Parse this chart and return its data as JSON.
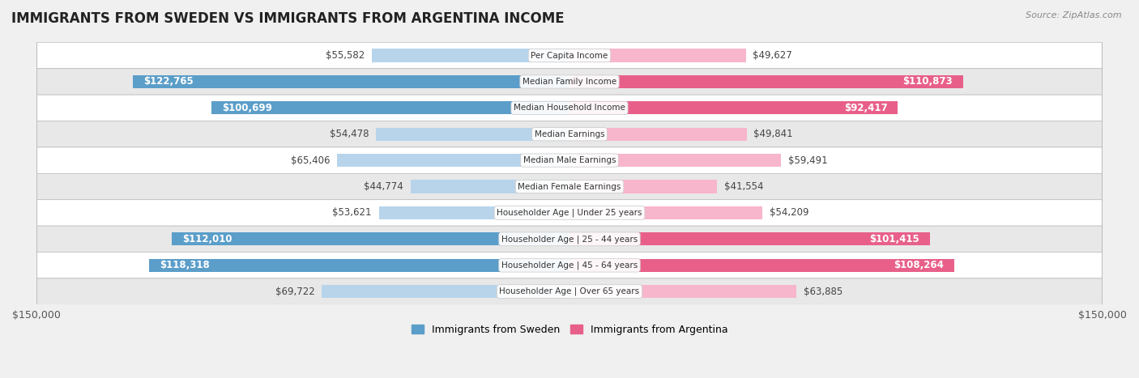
{
  "title": "IMMIGRANTS FROM SWEDEN VS IMMIGRANTS FROM ARGENTINA INCOME",
  "source": "Source: ZipAtlas.com",
  "categories": [
    "Per Capita Income",
    "Median Family Income",
    "Median Household Income",
    "Median Earnings",
    "Median Male Earnings",
    "Median Female Earnings",
    "Householder Age | Under 25 years",
    "Householder Age | 25 - 44 years",
    "Householder Age | 45 - 64 years",
    "Householder Age | Over 65 years"
  ],
  "sweden_values": [
    55582,
    122765,
    100699,
    54478,
    65406,
    44774,
    53621,
    112010,
    118318,
    69722
  ],
  "argentina_values": [
    49627,
    110873,
    92417,
    49841,
    59491,
    41554,
    54209,
    101415,
    108264,
    63885
  ],
  "sweden_labels": [
    "$55,582",
    "$122,765",
    "$100,699",
    "$54,478",
    "$65,406",
    "$44,774",
    "$53,621",
    "$112,010",
    "$118,318",
    "$69,722"
  ],
  "argentina_labels": [
    "$49,627",
    "$110,873",
    "$92,417",
    "$49,841",
    "$59,491",
    "$41,554",
    "$54,209",
    "$101,415",
    "$108,264",
    "$63,885"
  ],
  "sweden_color_light": "#b8d4eb",
  "sweden_color_dark": "#5b9ec9",
  "argentina_color_light": "#f7b6cc",
  "argentina_color_dark": "#e8608a",
  "max_value": 150000,
  "x_label_left": "$150,000",
  "x_label_right": "$150,000",
  "legend_sweden": "Immigrants from Sweden",
  "legend_argentina": "Immigrants from Argentina",
  "background_color": "#f0f0f0",
  "row_bg_even": "#ffffff",
  "row_bg_odd": "#e8e8e8",
  "title_fontsize": 12,
  "label_fontsize": 8.5,
  "bar_height": 0.5,
  "large_threshold": 80000
}
